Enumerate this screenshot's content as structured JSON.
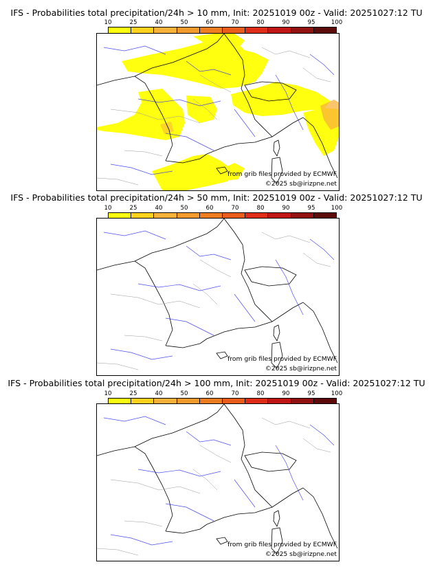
{
  "colorbar": {
    "ticks": [
      "10",
      "25",
      "40",
      "50",
      "60",
      "70",
      "80",
      "90",
      "95",
      "100"
    ],
    "colors": [
      "#ffff10",
      "#ffd21e",
      "#f8b23a",
      "#f29a2c",
      "#ee7d22",
      "#ea5c1c",
      "#df2d1a",
      "#c01616",
      "#921212",
      "#5c0a0a"
    ]
  },
  "panels": [
    {
      "title": "IFS - Probabilities total precipitation/24h > 10 mm, Init: 20251019 00z - Valid: 20251027:12 TU",
      "credit_source": "from grib files provided by ECMWF",
      "credit_copyright": "©2025 sb@irizpne.net",
      "precip_fields": [
        {
          "area": "northern-france",
          "probability_class": "10-25"
        },
        {
          "area": "belgium",
          "probability_class": "10-25"
        },
        {
          "area": "western-france-coast",
          "probability_class": "10-25"
        },
        {
          "area": "central-france",
          "probability_class": "10-25"
        },
        {
          "area": "switzerland-alps",
          "probability_class": "10-25"
        },
        {
          "area": "northern-italy",
          "probability_class": "10-25"
        },
        {
          "area": "adriatic-coast",
          "probability_class": "25-40"
        },
        {
          "area": "northern-spain",
          "probability_class": "10-25"
        },
        {
          "area": "southern-spain",
          "probability_class": "10-25"
        }
      ]
    },
    {
      "title": "IFS - Probabilities total precipitation/24h > 50 mm, Init: 20251019 00z - Valid: 20251027:12 TU",
      "credit_source": "from grib files provided by ECMWF",
      "credit_copyright": "©2025 sb@irizpne.net",
      "precip_fields": []
    },
    {
      "title": "IFS - Probabilities total precipitation/24h > 100 mm, Init: 20251019 00z - Valid: 20251027:12 TU",
      "credit_source": "from grib files provided by ECMWF",
      "credit_copyright": "©2025 sb@irizpne.net",
      "precip_fields": []
    }
  ]
}
